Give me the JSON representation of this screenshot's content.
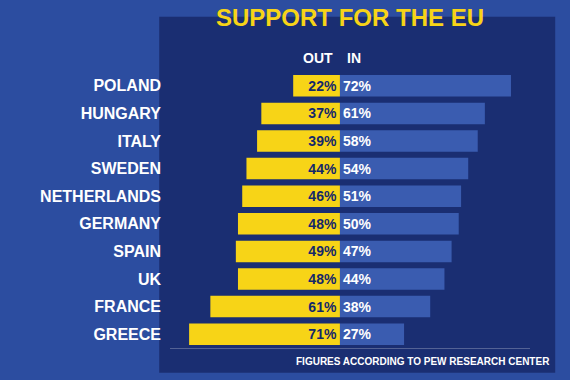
{
  "chart_data": {
    "type": "bar",
    "title": "SUPPORT FOR THE EU",
    "orientation": "horizontal",
    "categories": [
      "POLAND",
      "HUNGARY",
      "ITALY",
      "SWEDEN",
      "NETHERLANDS",
      "GERMANY",
      "SPAIN",
      "UK",
      "FRANCE",
      "GREECE"
    ],
    "series": [
      {
        "name": "OUT",
        "color": "#f7d417",
        "values": [
          22,
          37,
          39,
          44,
          46,
          48,
          49,
          48,
          61,
          71
        ],
        "value_labels": [
          "22%",
          "37%",
          "39%",
          "44%",
          "46%",
          "48%",
          "49%",
          "48%",
          "61%",
          "71%"
        ]
      },
      {
        "name": "IN",
        "color": "#3a5cb0",
        "values": [
          72,
          61,
          58,
          54,
          51,
          50,
          47,
          44,
          38,
          27
        ],
        "value_labels": [
          "72%",
          "61%",
          "58%",
          "54%",
          "51%",
          "50%",
          "47%",
          "44%",
          "38%",
          "27%"
        ]
      }
    ],
    "xlim": [
      0,
      80
    ],
    "data_labels": true,
    "tick_labels": "y",
    "grid": false,
    "annotations": [
      "FIGURES ACCORDING TO PEW RESEARCH CENTER"
    ]
  }
}
